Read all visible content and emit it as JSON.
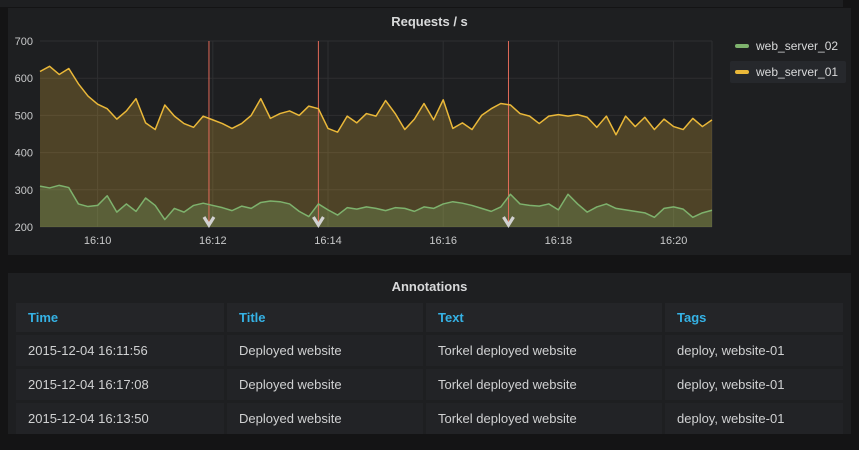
{
  "graph_panel": {
    "title": "Requests / s",
    "legend": [
      {
        "label": "web_server_02",
        "color": "#7eb26d",
        "highlighted": false
      },
      {
        "label": "web_server_01",
        "color": "#eab839",
        "highlighted": true
      }
    ]
  },
  "chart_data": {
    "type": "area",
    "title": "Requests / s",
    "x_domain_seconds": [
      0,
      700
    ],
    "x_start": 0,
    "x_step": 10,
    "x_axis": {
      "ticks": [
        {
          "t": 60,
          "label": "16:10"
        },
        {
          "t": 180,
          "label": "16:12"
        },
        {
          "t": 300,
          "label": "16:14"
        },
        {
          "t": 420,
          "label": "16:16"
        },
        {
          "t": 540,
          "label": "16:18"
        },
        {
          "t": 660,
          "label": "16:20"
        }
      ]
    },
    "y_axis": {
      "min": 200,
      "max": 700,
      "ticks": [
        200,
        300,
        400,
        500,
        600,
        700
      ]
    },
    "grid": true,
    "grid_color": "#2e2f31",
    "legend_position": "right-top",
    "series": [
      {
        "name": "web_server_01",
        "color": "#eab839",
        "fill": "rgba(234,184,57,0.24)",
        "values": [
          618,
          632,
          610,
          626,
          585,
          552,
          530,
          518,
          490,
          512,
          545,
          480,
          462,
          528,
          498,
          478,
          468,
          498,
          488,
          478,
          465,
          478,
          500,
          545,
          492,
          505,
          512,
          500,
          525,
          518,
          465,
          455,
          498,
          480,
          505,
          498,
          540,
          505,
          462,
          490,
          532,
          488,
          542,
          465,
          480,
          462,
          500,
          518,
          532,
          528,
          505,
          498,
          478,
          498,
          502,
          498,
          502,
          495,
          468,
          498,
          448,
          498,
          470,
          495,
          462,
          490,
          470,
          462,
          492,
          470,
          488
        ]
      },
      {
        "name": "web_server_02",
        "color": "#7eb26d",
        "fill": "rgba(126,178,109,0.25)",
        "values": [
          310,
          305,
          312,
          306,
          262,
          255,
          258,
          284,
          240,
          262,
          242,
          278,
          258,
          220,
          250,
          240,
          258,
          264,
          258,
          252,
          244,
          256,
          250,
          266,
          270,
          268,
          262,
          242,
          228,
          262,
          246,
          232,
          252,
          248,
          254,
          250,
          244,
          252,
          250,
          242,
          254,
          250,
          262,
          268,
          264,
          258,
          250,
          242,
          254,
          288,
          262,
          258,
          256,
          262,
          246,
          288,
          262,
          240,
          254,
          262,
          250,
          246,
          242,
          238,
          226,
          250,
          254,
          248,
          226,
          238,
          245
        ]
      }
    ],
    "annotations": [
      {
        "t": 176,
        "time": "16:11:56"
      },
      {
        "t": 290,
        "time": "16:13:50"
      },
      {
        "t": 488,
        "time": "16:17:08"
      }
    ],
    "annotation_color": "rgba(235,110,92,0.95)",
    "annotation_arrow_color": "#d2d2d2"
  },
  "annotations_panel": {
    "title": "Annotations",
    "columns": [
      "Time",
      "Title",
      "Text",
      "Tags"
    ],
    "rows": [
      [
        "2015-12-04 16:11:56",
        "Deployed website",
        "Torkel deployed website",
        "deploy, website-01"
      ],
      [
        "2015-12-04 16:17:08",
        "Deployed website",
        "Torkel deployed website",
        "deploy, website-01"
      ],
      [
        "2015-12-04 16:13:50",
        "Deployed website",
        "Torkel deployed website",
        "deploy, website-01"
      ]
    ]
  }
}
